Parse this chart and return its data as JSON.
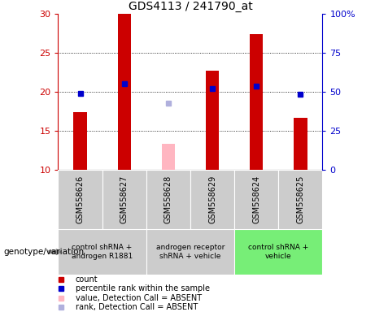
{
  "title": "GDS4113 / 241790_at",
  "samples": [
    "GSM558626",
    "GSM558627",
    "GSM558628",
    "GSM558629",
    "GSM558624",
    "GSM558625"
  ],
  "count_values": [
    17.4,
    30.0,
    null,
    22.7,
    27.4,
    16.7
  ],
  "count_absent": [
    null,
    null,
    13.4,
    null,
    null,
    null
  ],
  "percentile_values": [
    19.8,
    21.1,
    null,
    20.4,
    20.8,
    19.7
  ],
  "percentile_absent": [
    null,
    null,
    18.6,
    null,
    null,
    null
  ],
  "ylim_left": [
    10,
    30
  ],
  "ylim_right": [
    0,
    100
  ],
  "y_ticks_left": [
    10,
    15,
    20,
    25,
    30
  ],
  "y_ticks_right": [
    0,
    25,
    50,
    75,
    100
  ],
  "y_tick_labels_right": [
    "0",
    "25",
    "50",
    "75",
    "100%"
  ],
  "bar_color_red": "#cc0000",
  "bar_color_pink": "#ffb6c1",
  "dot_color_blue": "#0000cc",
  "dot_color_lightblue": "#b0b0dd",
  "axis_color_left": "#cc0000",
  "axis_color_right": "#0000cc",
  "sample_label_bg": "#cccccc",
  "group_bg_colors": [
    "#cccccc",
    "#cccccc",
    "#77ee77"
  ],
  "groups_info": [
    {
      "sample_indices": [
        0,
        1
      ],
      "label": "control shRNA +\nandrogen R1881"
    },
    {
      "sample_indices": [
        2,
        3
      ],
      "label": "androgen receptor\nshRNA + vehicle"
    },
    {
      "sample_indices": [
        4,
        5
      ],
      "label": "control shRNA +\nvehicle"
    }
  ],
  "bar_width": 0.3,
  "legend_items": [
    {
      "color": "#cc0000",
      "label": "count"
    },
    {
      "color": "#0000cc",
      "label": "percentile rank within the sample"
    },
    {
      "color": "#ffb6c1",
      "label": "value, Detection Call = ABSENT"
    },
    {
      "color": "#b0b0dd",
      "label": "rank, Detection Call = ABSENT"
    }
  ]
}
